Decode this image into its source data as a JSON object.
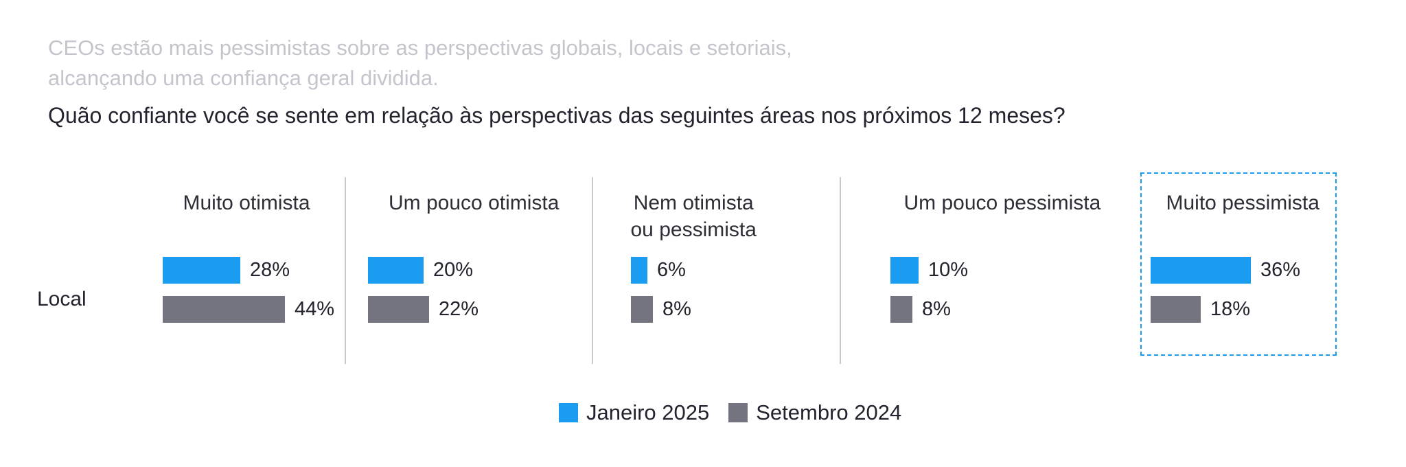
{
  "header": {
    "subtitle_line1": "CEOs estão mais pessimistas sobre as perspectivas globais, locais e setoriais,",
    "subtitle_line2": "alcançando uma confiança geral dividida.",
    "question": "Quão confiante você se sente em relação às perspectivas das seguintes áreas nos próximos 12 meses?"
  },
  "colors": {
    "series_jan_2025": "#1a9cf0",
    "series_sep_2024": "#747480",
    "highlight_border": "#1a9cf0",
    "subtitle": "#c4c4cd"
  },
  "chart_data": {
    "type": "bar",
    "orientation": "horizontal",
    "title": "Quão confiante você se sente em relação às perspectivas das seguintes áreas nos próximos 12 meses?",
    "row_label": "Local",
    "categories": [
      "Muito otimista",
      "Um pouco otimista",
      "Nem otimista ou pessimista",
      "Um pouco pessimista",
      "Muito pessimista"
    ],
    "category_lines": [
      [
        "Muito otimista"
      ],
      [
        "Um pouco otimista"
      ],
      [
        "Nem otimista",
        "ou pessimista"
      ],
      [
        "Um pouco pessimista"
      ],
      [
        "Muito pessimista"
      ]
    ],
    "highlighted_category": "Muito pessimista",
    "series": [
      {
        "name": "Janeiro 2025",
        "values": [
          28,
          20,
          6,
          10,
          36
        ],
        "labels": [
          "28%",
          "20%",
          "6%",
          "10%",
          "36%"
        ]
      },
      {
        "name": "Setembro 2024",
        "values": [
          44,
          22,
          8,
          8,
          18
        ],
        "labels": [
          "44%",
          "22%",
          "8%",
          "8%",
          "18%"
        ]
      }
    ],
    "unit": "%",
    "legend": {
      "position": "bottom",
      "entries": [
        "Janeiro 2025",
        "Setembro 2024"
      ]
    },
    "grid": false
  }
}
